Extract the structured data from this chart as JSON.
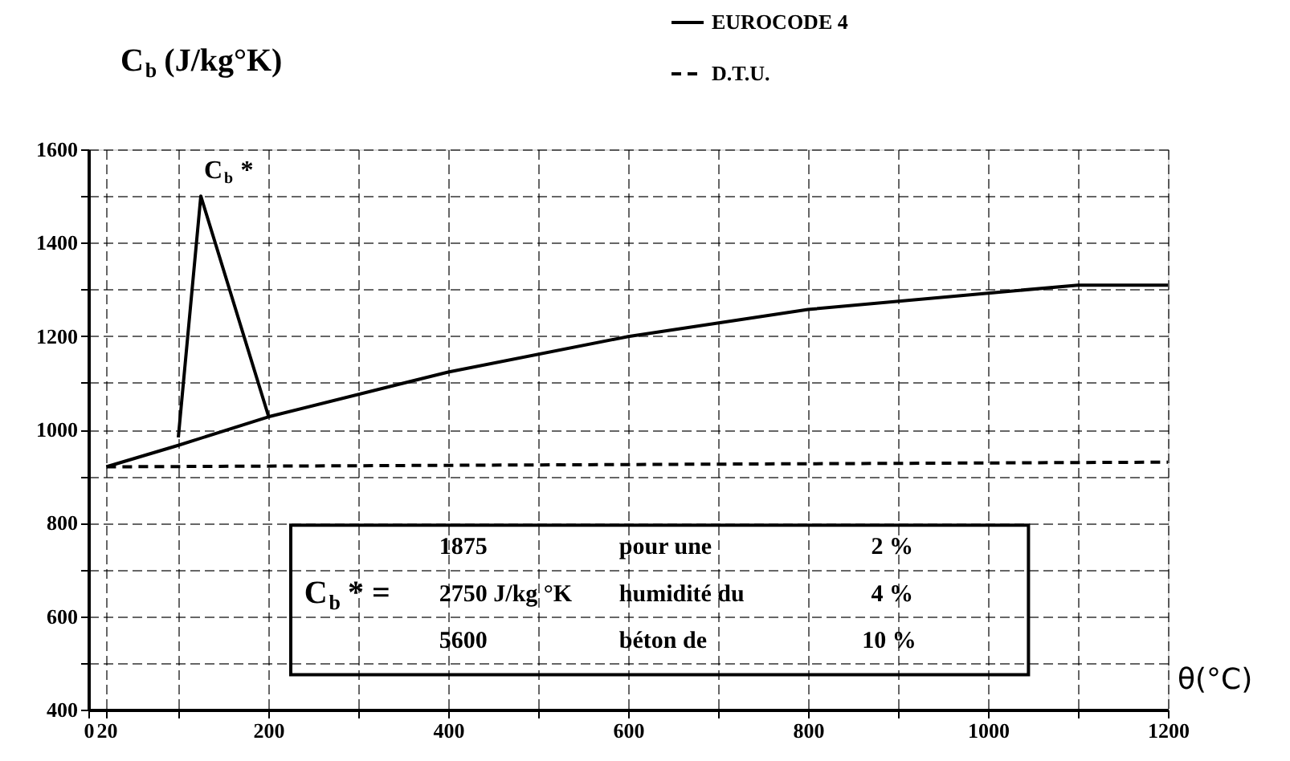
{
  "chart_data": {
    "type": "line",
    "xlabel": "θ(°C)",
    "ylabel": "C$_{b}$ (J/kg°K)",
    "series": [
      {
        "name": "EUROCODE 4",
        "color": "#000000",
        "line_style": "solid",
        "x": [
          20,
          100,
          200,
          400,
          600,
          800,
          1000,
          1100,
          1200
        ],
        "values": [
          920,
          966,
          1027,
          1123,
          1199,
          1257,
          1292,
          1309,
          1309
        ]
      },
      {
        "color": "#000000",
        "line_style": "solid",
        "x": [
          100,
          125,
          200
        ],
        "values": [
          983,
          1500,
          1030
        ]
      },
      {
        "name": "D.T.U.",
        "color": "#000000",
        "line_style": "dashed",
        "x": [
          20,
          1200
        ],
        "values": [
          920,
          930
        ]
      }
    ],
    "xlim": [
      0,
      1200
    ],
    "xticks": [
      0,
      20,
      {
        "value": 100,
        "label": null
      },
      200,
      {
        "value": 300,
        "label": null
      },
      400,
      {
        "value": 500,
        "label": null
      },
      600,
      {
        "value": 700,
        "label": null
      },
      800,
      {
        "value": 900,
        "label": null
      },
      1000,
      {
        "value": 1100,
        "label": null
      },
      1200
    ],
    "ylim": [
      400,
      1600
    ],
    "yticks": [
      400,
      {
        "value": 500,
        "label": null
      },
      600,
      {
        "value": 700,
        "label": null
      },
      800,
      {
        "value": 900,
        "label": null
      },
      1000,
      {
        "value": 1100,
        "label": null
      },
      1200,
      {
        "value": 1300,
        "label": null
      },
      1400,
      {
        "value": 1500,
        "label": null
      },
      1600
    ],
    "grid": true,
    "legend": "top right",
    "marker": "none",
    "annotations": [
      {
        "text": "C$_{b}$*",
        "x": 125,
        "y": 1500
      },
      "C$_{b}$* =",
      "1875",
      "2750 J/kg °K",
      "5600",
      "pour une",
      "humidité du",
      "béton de",
      "2 %",
      "4 %",
      "10 %"
    ]
  }
}
